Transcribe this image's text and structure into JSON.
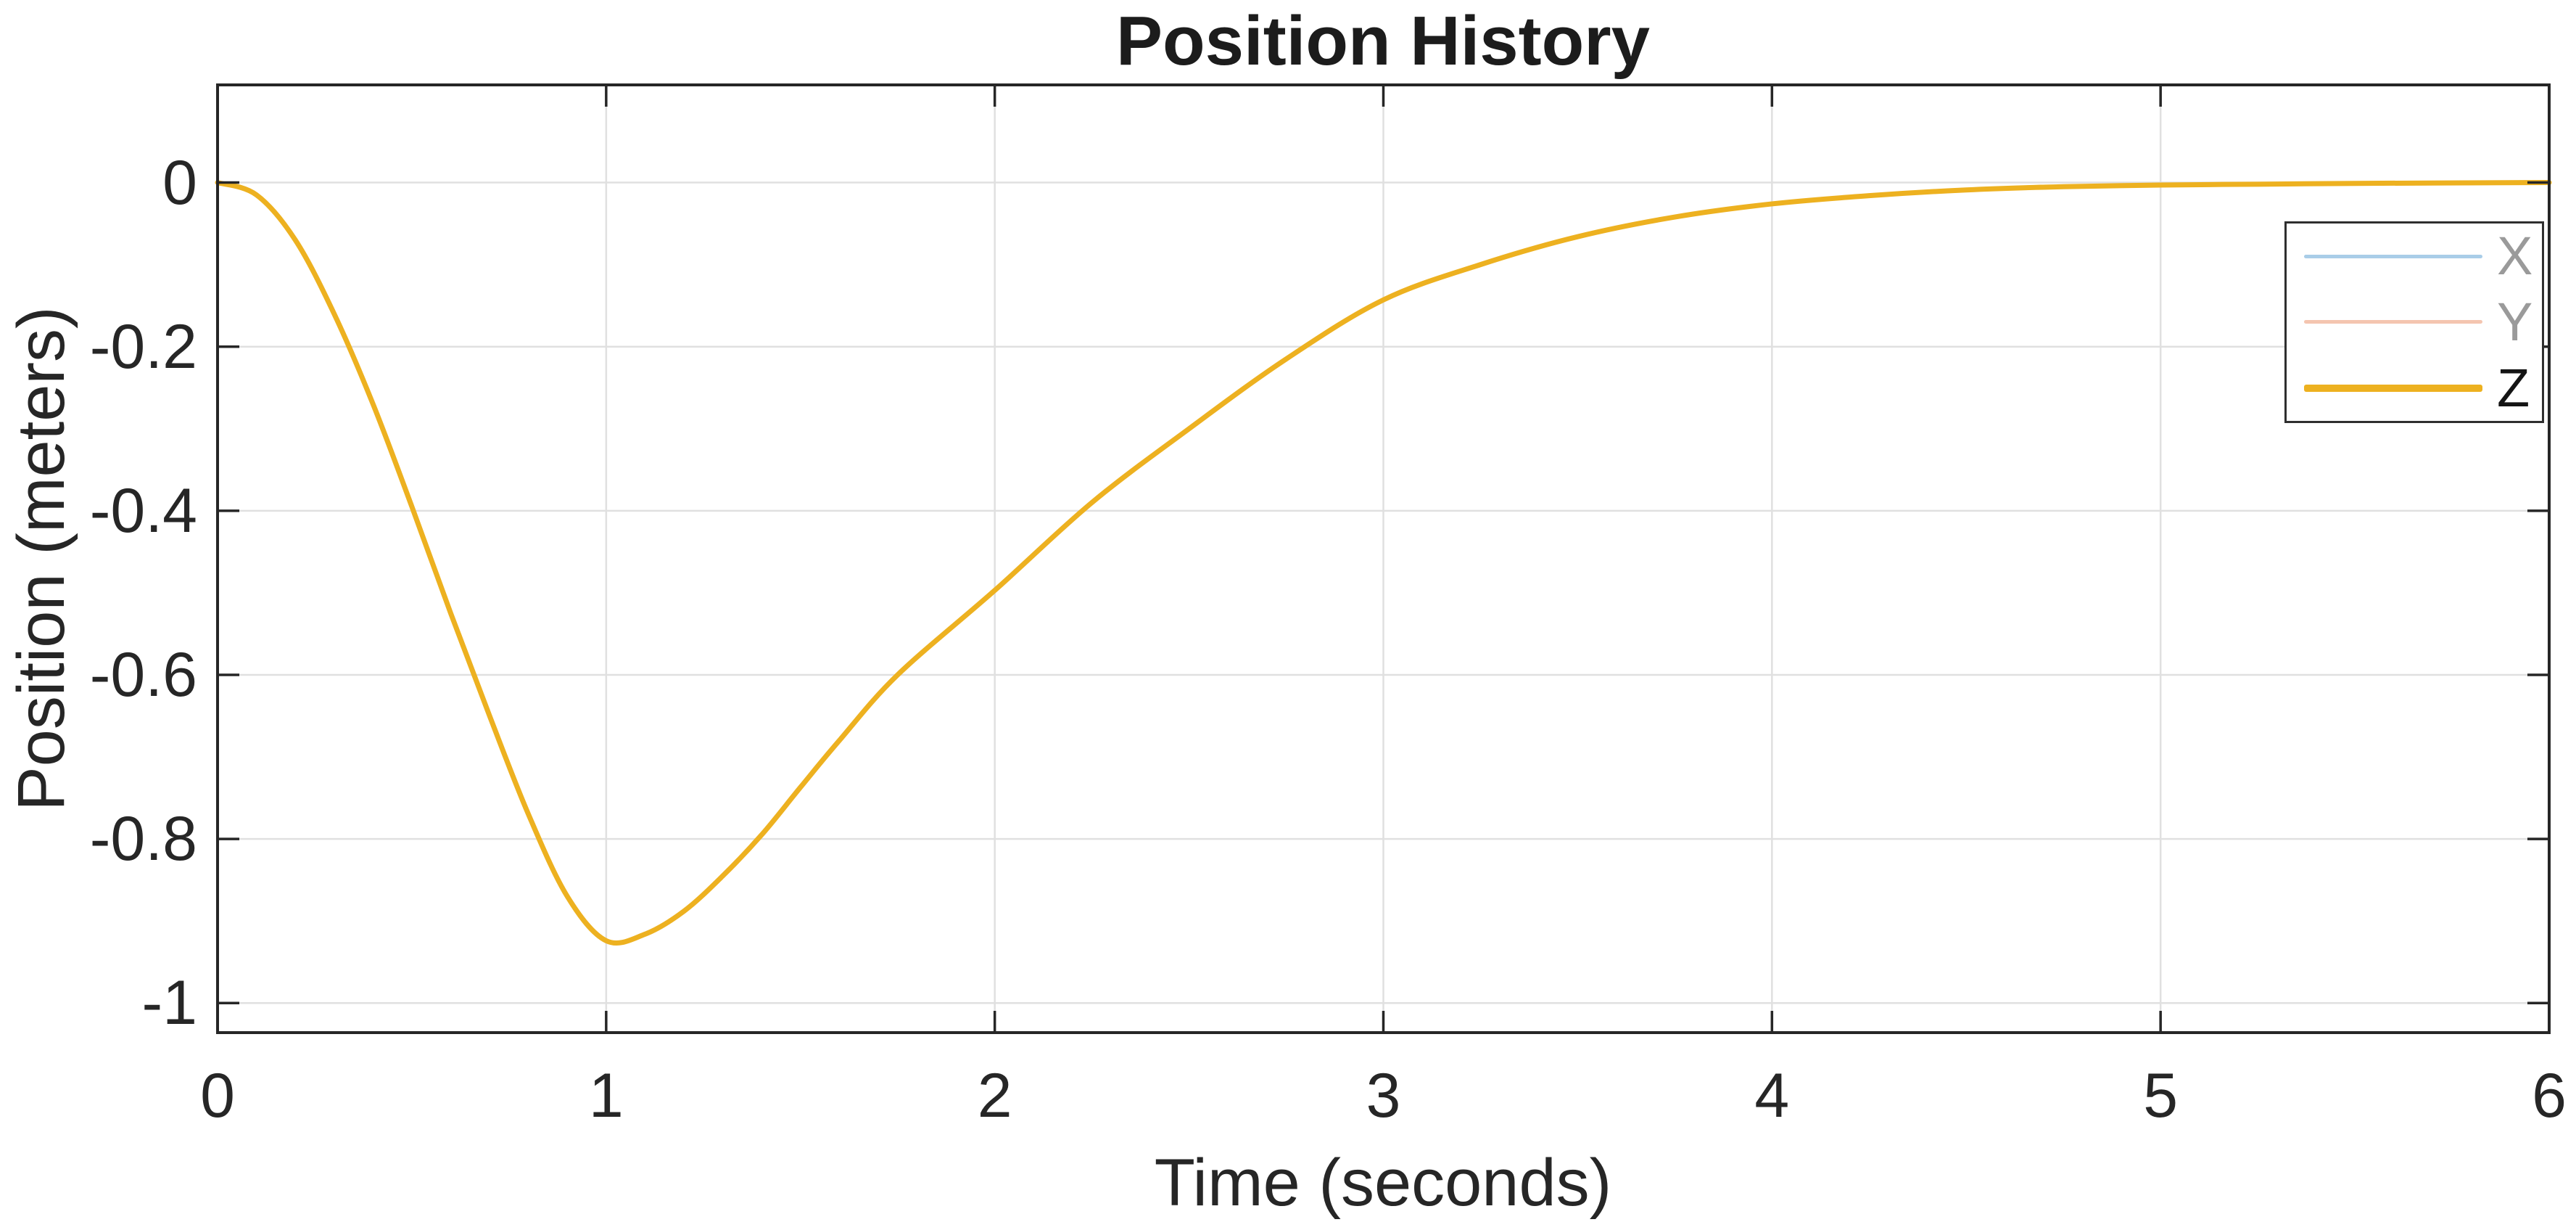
{
  "figure": {
    "background": "#ffffff"
  },
  "chart_data": {
    "type": "line",
    "title": "Position History",
    "xlabel": "Time (seconds)",
    "ylabel": "Position (meters)",
    "xlim": [
      0,
      6
    ],
    "ylim": [
      -1.036,
      0.119
    ],
    "x_ticks": [
      0,
      1,
      2,
      3,
      4,
      5,
      6
    ],
    "x_tick_labels": [
      "0",
      "1",
      "2",
      "3",
      "4",
      "5",
      "6"
    ],
    "y_ticks": [
      0,
      -0.2,
      -0.4,
      -0.6,
      -0.8,
      -1
    ],
    "y_tick_labels": [
      "0",
      "-0.2",
      "-0.4",
      "-0.6",
      "-0.8",
      "-1"
    ],
    "grid": true,
    "legend_position": "top-right",
    "series": [
      {
        "name": "Z",
        "color": "#edb120",
        "x": [
          0,
          0.1,
          0.2,
          0.3,
          0.4,
          0.5,
          0.6,
          0.7,
          0.8,
          0.9,
          1.0,
          1.1,
          1.2,
          1.3,
          1.4,
          1.5,
          1.6,
          1.75,
          2.0,
          2.25,
          2.5,
          2.75,
          3.0,
          3.25,
          3.5,
          3.75,
          4.0,
          4.25,
          4.5,
          4.75,
          5.0,
          5.25,
          5.5,
          6.0
        ],
        "y": [
          0,
          -0.015,
          -0.07,
          -0.16,
          -0.27,
          -0.395,
          -0.525,
          -0.65,
          -0.77,
          -0.87,
          -0.924,
          -0.916,
          -0.888,
          -0.845,
          -0.795,
          -0.737,
          -0.68,
          -0.6,
          -0.497,
          -0.39,
          -0.3,
          -0.215,
          -0.143,
          -0.1,
          -0.066,
          -0.042,
          -0.026,
          -0.016,
          -0.009,
          -0.005,
          -0.003,
          -0.002,
          -0.001,
          0
        ]
      }
    ],
    "legend": {
      "items": [
        {
          "label": "X",
          "line_color": "#a9cde8",
          "label_color": "#9a9a9a",
          "line_width": 5,
          "dimmed": true
        },
        {
          "label": "Y",
          "line_color": "#f4c5b0",
          "label_color": "#9a9a9a",
          "line_width": 5,
          "dimmed": true
        },
        {
          "label": "Z",
          "line_color": "#edb120",
          "label_color": "#141414",
          "line_width": 10,
          "dimmed": false
        }
      ]
    },
    "colors": {
      "curve_z": "#edb120",
      "axis": "#262626",
      "grid": "#e0e0e0",
      "background": "#ffffff",
      "tick_label": "#262626"
    }
  }
}
